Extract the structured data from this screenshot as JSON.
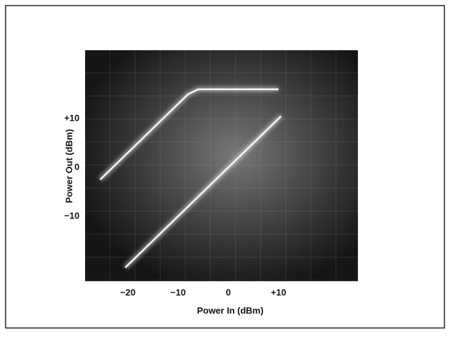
{
  "chart_data": {
    "type": "line",
    "xlabel": "Power In (dBm)",
    "ylabel": "Power Out (dBm)",
    "xlim": [
      -28.5,
      25.8
    ],
    "ylim": [
      -23.3,
      24
    ],
    "xticks": [
      {
        "value": -20,
        "label": "−20"
      },
      {
        "value": -10,
        "label": "−10"
      },
      0,
      {
        "value": 10,
        "label": "+10"
      }
    ],
    "yticks": [
      {
        "value": -10,
        "label": "−10"
      },
      0,
      {
        "value": 10,
        "label": "+10"
      }
    ],
    "grid": false,
    "series": [
      {
        "color": "#f4f4f4",
        "x": [
          -25.5,
          -10,
          -8,
          -6,
          -3,
          0,
          5,
          10
        ],
        "values": [
          -2.5,
          13,
          15,
          16,
          16,
          16,
          16,
          16
        ]
      },
      {
        "color": "#f4f4f4",
        "x": [
          -20.5,
          10.5
        ],
        "values": [
          -20.5,
          10.5
        ]
      }
    ]
  }
}
